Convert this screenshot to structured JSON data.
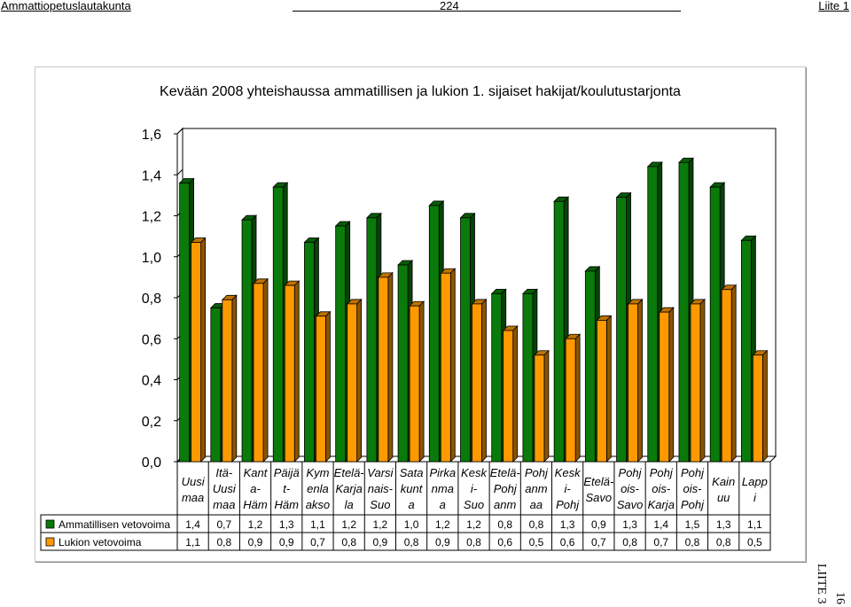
{
  "header": {
    "left": "Ammattiopetuslautakunta",
    "center": "224",
    "right": "Liite 1"
  },
  "side": {
    "number": "16",
    "label": "LIITE 3"
  },
  "chart_data": {
    "type": "bar",
    "title": "Kevään 2008 yhteishaussa ammatillisen ja lukion 1. sijaiset hakijat/koulutustarjonta",
    "ylim": [
      0,
      1.6
    ],
    "yticks": [
      "0,0",
      "0,2",
      "0,4",
      "0,6",
      "0,8",
      "1,0",
      "1,2",
      "1,4",
      "1,6"
    ],
    "grid": false,
    "legend": "table-left",
    "categories": [
      [
        "Uusi",
        "maa"
      ],
      [
        "Itä-",
        "Uusi",
        "maa"
      ],
      [
        "Kant",
        "a-",
        "Häm"
      ],
      [
        "Päijä",
        "t-",
        "Häm"
      ],
      [
        "Kym",
        "enla",
        "akso"
      ],
      [
        "Etelä-",
        "Karja",
        "la"
      ],
      [
        "Varsi",
        "nais-",
        "Suo"
      ],
      [
        "Sata",
        "kunt",
        "a"
      ],
      [
        "Pirka",
        "nma",
        "a"
      ],
      [
        "Kesk",
        "i-",
        "Suo"
      ],
      [
        "Etelä-",
        "Pohj",
        "anm"
      ],
      [
        "Pohj",
        "anm",
        "aa"
      ],
      [
        "Kesk",
        "i-",
        "Pohj"
      ],
      [
        "Etelä-",
        "Savo"
      ],
      [
        "Pohj",
        "ois-",
        "Savo"
      ],
      [
        "Pohj",
        "ois-",
        "Karja"
      ],
      [
        "Pohj",
        "ois-",
        "Pohj"
      ],
      [
        "Kain",
        "uu"
      ],
      [
        "Lapp",
        "i"
      ]
    ],
    "series": [
      {
        "name": "Ammatillisen vetovoima",
        "color": "#0a7a0a",
        "values": [
          1.36,
          0.75,
          1.18,
          1.34,
          1.07,
          1.15,
          1.19,
          0.96,
          1.25,
          1.19,
          0.82,
          0.82,
          1.27,
          0.93,
          1.29,
          1.44,
          1.46,
          1.34,
          1.08
        ],
        "labels": [
          "1,4",
          "0,7",
          "1,2",
          "1,3",
          "1,1",
          "1,2",
          "1,2",
          "1,0",
          "1,2",
          "1,2",
          "0,8",
          "0,8",
          "1,3",
          "0,9",
          "1,3",
          "1,4",
          "1,5",
          "1,3",
          "1,1"
        ]
      },
      {
        "name": "Lukion vetovoima",
        "color": "#ff9900",
        "values": [
          1.07,
          0.79,
          0.87,
          0.86,
          0.71,
          0.77,
          0.9,
          0.76,
          0.92,
          0.77,
          0.64,
          0.52,
          0.6,
          0.69,
          0.77,
          0.73,
          0.77,
          0.84,
          0.52
        ],
        "labels": [
          "1,1",
          "0,8",
          "0,9",
          "0,9",
          "0,7",
          "0,8",
          "0,9",
          "0,8",
          "0,9",
          "0,8",
          "0,6",
          "0,5",
          "0,6",
          "0,7",
          "0,8",
          "0,7",
          "0,8",
          "0,8",
          "0,5"
        ]
      }
    ]
  }
}
